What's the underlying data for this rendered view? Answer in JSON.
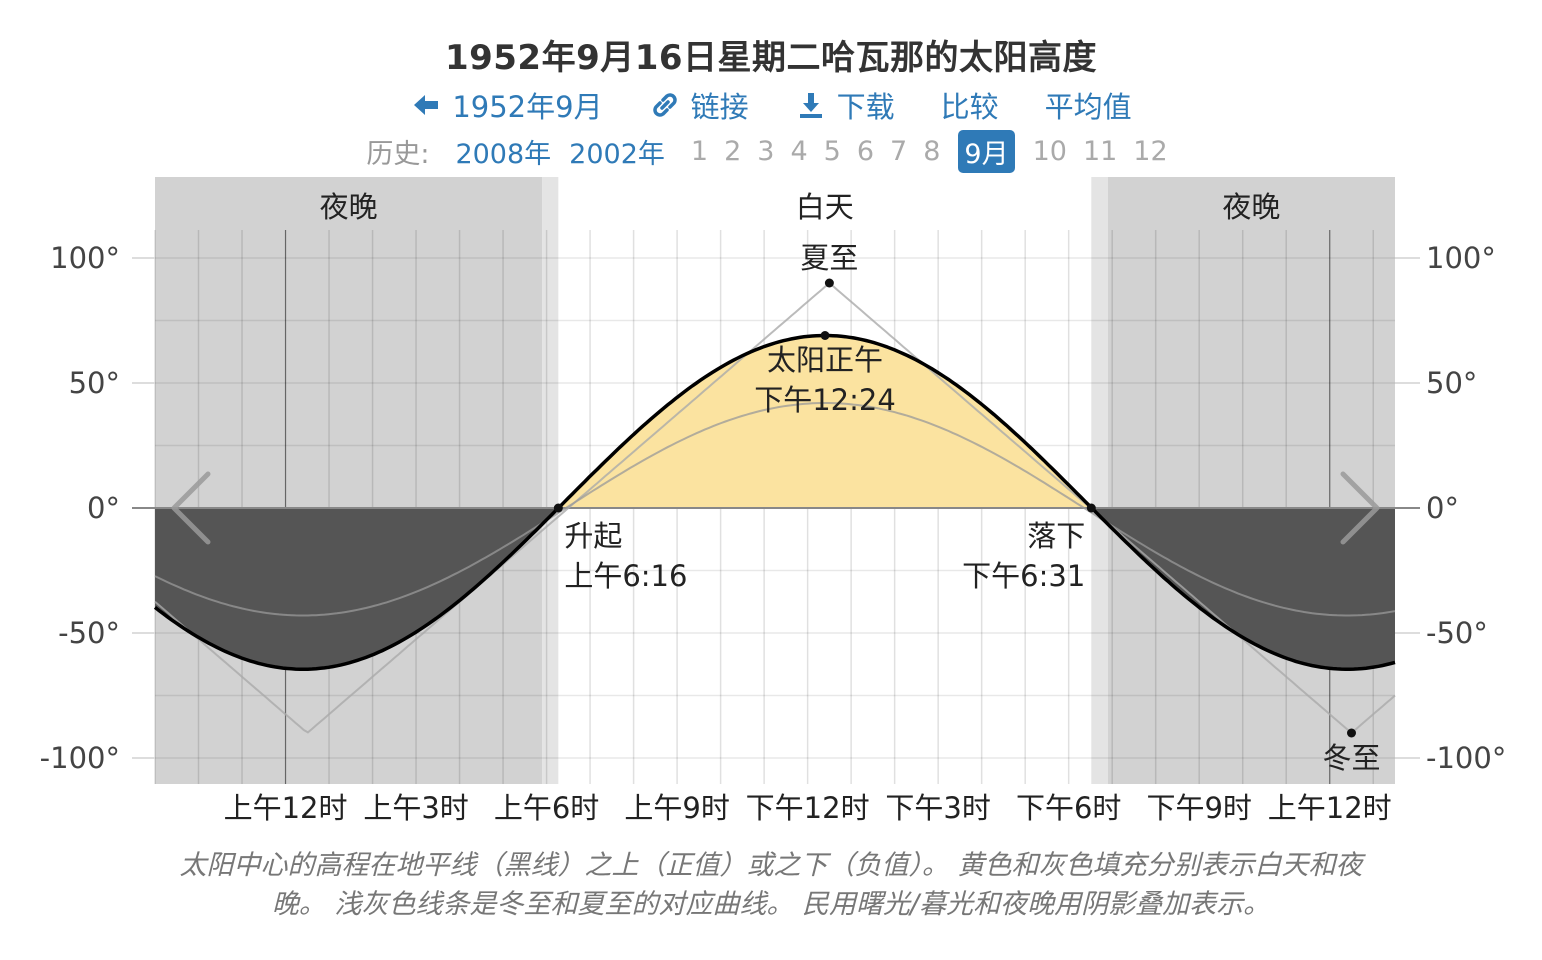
{
  "header": {
    "title": "1952年9月16日星期二哈瓦那的太阳高度",
    "nav": {
      "back_label": "1952年9月",
      "link_label": "链接",
      "download_label": "下载",
      "compare_label": "比较",
      "average_label": "平均值"
    },
    "history": {
      "label": "历史:",
      "years": [
        "2008年",
        "2002年"
      ],
      "months": [
        "1",
        "2",
        "3",
        "4",
        "5",
        "6",
        "7",
        "8",
        "9月",
        "10",
        "11",
        "12"
      ],
      "active_month": "9月"
    }
  },
  "chart_data": {
    "type": "area",
    "ylabel": "",
    "xlabel": "",
    "ylim": [
      -100,
      100
    ],
    "yticks": [
      100,
      50,
      0,
      -50,
      -100
    ],
    "ytick_labels": [
      "100°",
      "50°",
      "0°",
      "-50°",
      "-100°"
    ],
    "x_range_hours": [
      -3,
      25.5
    ],
    "xticks_hours": [
      0,
      3,
      6,
      9,
      12,
      15,
      18,
      21,
      24
    ],
    "xtick_labels": [
      "上午12时",
      "上午3时",
      "上午6时",
      "上午9时",
      "下午12时",
      "下午3时",
      "下午6时",
      "下午9时",
      "上午12时"
    ],
    "band_labels": {
      "night": "夜晚",
      "day": "白天"
    },
    "sunrise_hour": 6.27,
    "sunset_hour": 18.52,
    "twilight_morning_start_hour": 5.9,
    "twilight_evening_end_hour": 18.9,
    "solar_noon": {
      "hour": 12.4,
      "altitude": 69.0,
      "label": "太阳正午",
      "time": "下午12:24"
    },
    "sunrise": {
      "label": "升起",
      "time": "上午6:16"
    },
    "sunset": {
      "label": "落下",
      "time": "下午6:31"
    },
    "summer_solstice": {
      "label": "夏至",
      "hour": 12.5,
      "altitude": 90
    },
    "winter_solstice": {
      "label": "冬至",
      "hour": 24.5,
      "altitude": -90
    },
    "series": [
      {
        "name": "",
        "peak": 69.0,
        "trough": -64.5,
        "color": "#000000"
      },
      {
        "name": "夏至",
        "peak": 90,
        "trough": -90,
        "color": "#aaaaaa"
      },
      {
        "name": "冬至",
        "peak": 42,
        "trough": -43,
        "color": "#999999"
      }
    ],
    "colors": {
      "day_fill": "#fbe3a0",
      "night_fill": "#555555",
      "night_band": "#d2d2d2",
      "twilight_band": "#e4e4e4"
    }
  },
  "caption": {
    "line1": "太阳中心的高程在地平线（黑线）之上（正值）或之下（负值）。 黄色和灰色填充分别表示白天和夜",
    "line2": "晚。 浅灰色线条是冬至和夏至的对应曲线。 民用曙光/暮光和夜晚用阴影叠加表示。"
  }
}
